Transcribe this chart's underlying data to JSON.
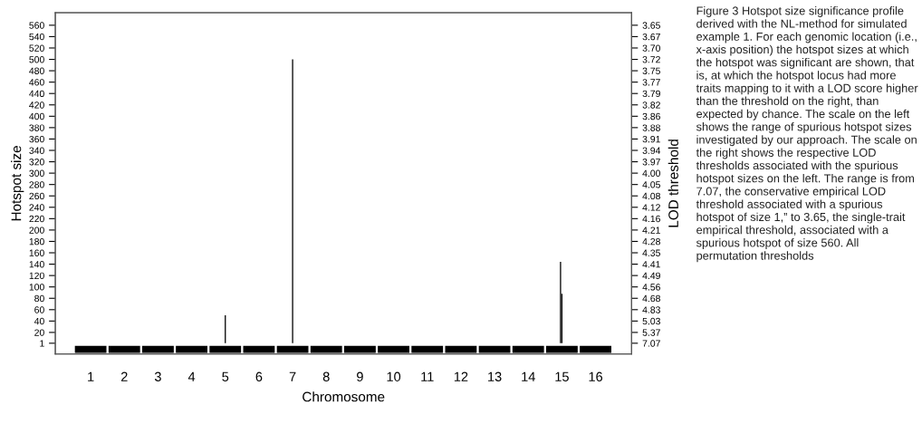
{
  "chart_data": {
    "type": "bar",
    "x": [
      5,
      7,
      14.96,
      15.0
    ],
    "base": [
      1,
      1,
      1,
      1
    ],
    "values": [
      49,
      499,
      143,
      87
    ],
    "color": "#000000",
    "xlim": [
      -0.05,
      17.07
    ],
    "xticks": [
      1,
      2,
      3,
      4,
      5,
      6,
      7,
      8,
      9,
      10,
      11,
      12,
      13,
      14,
      15,
      16
    ],
    "ylim": [
      -18,
      582
    ],
    "yticks": [
      1,
      20,
      40,
      60,
      80,
      100,
      120,
      140,
      160,
      180,
      200,
      220,
      240,
      260,
      280,
      300,
      320,
      340,
      360,
      380,
      400,
      420,
      440,
      460,
      480,
      500,
      520,
      540,
      560
    ],
    "y2_categories": [
      "3.65",
      "3.67",
      "3.70",
      "3.72",
      "3.75",
      "3.77",
      "3.79",
      "3.82",
      "3.86",
      "3.88",
      "3.91",
      "3.94",
      "3.97",
      "4.00",
      "4.05",
      "4.08",
      "4.12",
      "4.16",
      "4.21",
      "4.28",
      "4.35",
      "4.41",
      "4.49",
      "4.56",
      "4.68",
      "4.83",
      "5.03",
      "5.37",
      "7.07"
    ],
    "xlabel": "Chromosome",
    "ylabel": "Hotspot size",
    "y2label": "LOD threshold",
    "grid": false,
    "annotations": [
      "Figure 3 Hotspot size significance profile derived with the NL-method for simulated example 1. For each genomic location (i.e., x-axis position) the hotspot sizes at which the hotspot was significant are shown, that is, at which the hotspot locus had more traits mapping to it with a LOD score higher than the threshold on the right, than expected by chance. The scale on the left shows the range of spurious hotspot sizes investigated by our approach. The scale on the right shows the respective LOD thresholds associated with the spurious hotspot sizes on the left. The range is from 7.07, the conservative empirical LOD threshold associated with a spurious hotspot of size 1,” to 3.65, the single-trait empirical threshold, associated with a spurious hotspot of size 560. All permutation thresholds"
    ]
  }
}
